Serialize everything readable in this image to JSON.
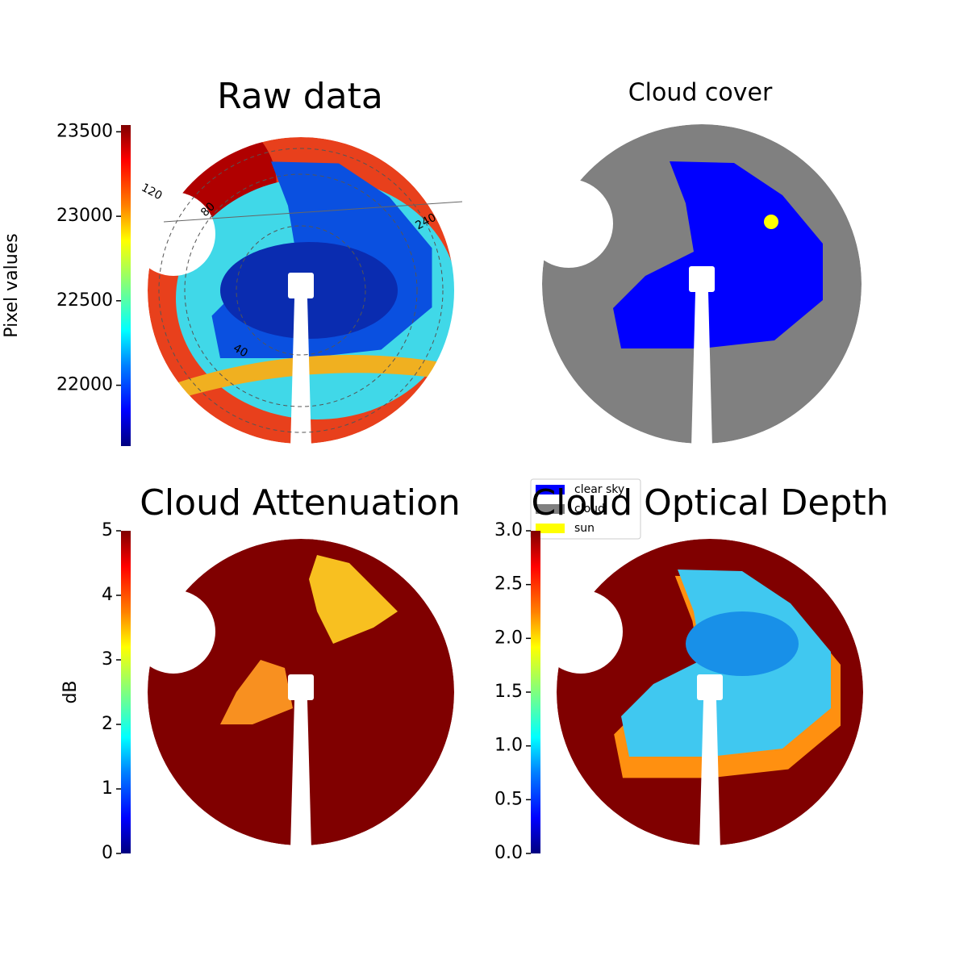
{
  "chart_data": [
    {
      "type": "image",
      "title": "Raw data",
      "colorbar_label": "Pixel values",
      "colormap": "jet",
      "clim": [
        21640,
        23540
      ],
      "cticks": [
        22000,
        22500,
        23000,
        23500
      ],
      "annotations": [
        "120",
        "240",
        "80",
        "40"
      ]
    },
    {
      "type": "image",
      "title": "Cloud cover",
      "legend": [
        {
          "name": "clear sky",
          "color": "#0000ff"
        },
        {
          "name": "cloud",
          "color": "#808080"
        },
        {
          "name": "sun",
          "color": "#ffff00"
        }
      ]
    },
    {
      "type": "image",
      "title": "Cloud Attenuation",
      "colorbar_label": "dB",
      "colormap": "jet",
      "clim": [
        0,
        5
      ],
      "cticks": [
        0,
        1,
        2,
        3,
        4,
        5
      ]
    },
    {
      "type": "image",
      "title": "Cloud Optical Depth",
      "colormap": "jet",
      "clim": [
        0,
        3
      ],
      "cticks": [
        {
          "value": 0,
          "label": "0.0"
        },
        0.5,
        {
          "value": 1,
          "label": "1.0"
        },
        1.5,
        {
          "value": 2,
          "label": "2.0"
        },
        2.5,
        {
          "value": 3,
          "label": "3.0"
        }
      ]
    }
  ]
}
